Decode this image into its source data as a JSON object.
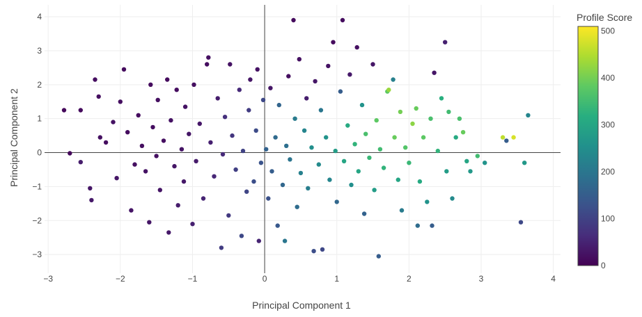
{
  "chart_data": {
    "type": "scatter",
    "title": "",
    "xlabel": "Principal Component 1",
    "ylabel": "Principal Component 2",
    "xlim": [
      -3.05,
      4.1
    ],
    "ylim": [
      -3.55,
      4.35
    ],
    "xticks": [
      -3,
      -2,
      -1,
      0,
      1,
      2,
      3,
      4
    ],
    "yticks": [
      -3,
      -2,
      -1,
      0,
      1,
      2,
      3,
      4
    ],
    "grid": true,
    "zero_lines": true,
    "colorbar": {
      "title": "Profile Score",
      "min": 0,
      "max": 510,
      "ticks": [
        0,
        100,
        200,
        300,
        400,
        500
      ],
      "colorscale": "viridis"
    },
    "points_note": "approximate representative sample of the ~900 plotted points",
    "points": [
      {
        "x": -2.78,
        "y": 1.25,
        "score": 12
      },
      {
        "x": -2.7,
        "y": -0.02,
        "score": 10
      },
      {
        "x": -2.55,
        "y": 1.25,
        "score": 15
      },
      {
        "x": -2.55,
        "y": -0.28,
        "score": 40
      },
      {
        "x": -2.42,
        "y": -1.05,
        "score": 30
      },
      {
        "x": -2.4,
        "y": -1.4,
        "score": 35
      },
      {
        "x": -2.35,
        "y": 2.15,
        "score": 18
      },
      {
        "x": -2.3,
        "y": 1.65,
        "score": 20
      },
      {
        "x": -2.28,
        "y": 0.45,
        "score": 22
      },
      {
        "x": -2.2,
        "y": 0.3,
        "score": 18
      },
      {
        "x": -2.1,
        "y": 0.9,
        "score": 25
      },
      {
        "x": -2.05,
        "y": -0.75,
        "score": 30
      },
      {
        "x": -2.0,
        "y": 1.5,
        "score": 20
      },
      {
        "x": -1.95,
        "y": 2.45,
        "score": 14
      },
      {
        "x": -1.9,
        "y": 0.6,
        "score": 16
      },
      {
        "x": -1.85,
        "y": -1.7,
        "score": 28
      },
      {
        "x": -1.8,
        "y": -0.35,
        "score": 22
      },
      {
        "x": -1.75,
        "y": 1.1,
        "score": 18
      },
      {
        "x": -1.7,
        "y": 0.2,
        "score": 20
      },
      {
        "x": -1.65,
        "y": -0.55,
        "score": 24
      },
      {
        "x": -1.6,
        "y": -2.05,
        "score": 30
      },
      {
        "x": -1.58,
        "y": 2.0,
        "score": 16
      },
      {
        "x": -1.55,
        "y": 0.75,
        "score": 19
      },
      {
        "x": -1.5,
        "y": -0.1,
        "score": 22
      },
      {
        "x": -1.48,
        "y": 1.55,
        "score": 20
      },
      {
        "x": -1.45,
        "y": -1.1,
        "score": 27
      },
      {
        "x": -1.4,
        "y": 0.35,
        "score": 21
      },
      {
        "x": -1.35,
        "y": 2.15,
        "score": 15
      },
      {
        "x": -1.33,
        "y": -2.35,
        "score": 35
      },
      {
        "x": -1.3,
        "y": 0.95,
        "score": 24
      },
      {
        "x": -1.25,
        "y": -0.4,
        "score": 30
      },
      {
        "x": -1.22,
        "y": 1.85,
        "score": 18
      },
      {
        "x": -1.2,
        "y": -1.55,
        "score": 40
      },
      {
        "x": -1.15,
        "y": 0.1,
        "score": 28
      },
      {
        "x": -1.12,
        "y": -0.85,
        "score": 35
      },
      {
        "x": -1.1,
        "y": 1.35,
        "score": 25
      },
      {
        "x": -1.05,
        "y": 0.55,
        "score": 30
      },
      {
        "x": -1.0,
        "y": -2.1,
        "score": 45
      },
      {
        "x": -0.98,
        "y": 2.0,
        "score": 20
      },
      {
        "x": -0.95,
        "y": -0.25,
        "score": 38
      },
      {
        "x": -0.9,
        "y": 0.85,
        "score": 32
      },
      {
        "x": -0.85,
        "y": -1.35,
        "score": 50
      },
      {
        "x": -0.8,
        "y": 2.6,
        "score": 18
      },
      {
        "x": -0.78,
        "y": 2.8,
        "score": 22
      },
      {
        "x": -0.75,
        "y": 0.3,
        "score": 45
      },
      {
        "x": -0.7,
        "y": -0.7,
        "score": 55
      },
      {
        "x": -0.65,
        "y": 1.6,
        "score": 40
      },
      {
        "x": -0.6,
        "y": -2.8,
        "score": 90
      },
      {
        "x": -0.58,
        "y": -0.05,
        "score": 60
      },
      {
        "x": -0.55,
        "y": 1.05,
        "score": 70
      },
      {
        "x": -0.5,
        "y": -1.85,
        "score": 85
      },
      {
        "x": -0.48,
        "y": 2.6,
        "score": 25
      },
      {
        "x": -0.45,
        "y": 0.5,
        "score": 80
      },
      {
        "x": -0.4,
        "y": -0.5,
        "score": 95
      },
      {
        "x": -0.35,
        "y": 1.85,
        "score": 60
      },
      {
        "x": -0.32,
        "y": -2.45,
        "score": 110
      },
      {
        "x": -0.3,
        "y": 0.05,
        "score": 100
      },
      {
        "x": -0.25,
        "y": -1.15,
        "score": 105
      },
      {
        "x": -0.22,
        "y": 1.25,
        "score": 90
      },
      {
        "x": -0.2,
        "y": 2.15,
        "score": 30
      },
      {
        "x": -0.15,
        "y": -0.85,
        "score": 120
      },
      {
        "x": -0.12,
        "y": 0.65,
        "score": 115
      },
      {
        "x": -0.1,
        "y": 2.45,
        "score": 25
      },
      {
        "x": -0.08,
        "y": -2.6,
        "score": 50
      },
      {
        "x": -0.05,
        "y": -0.3,
        "score": 130
      },
      {
        "x": -0.02,
        "y": 1.55,
        "score": 110
      },
      {
        "x": 0.02,
        "y": 0.1,
        "score": 160
      },
      {
        "x": 0.05,
        "y": -1.35,
        "score": 125
      },
      {
        "x": 0.08,
        "y": 1.9,
        "score": 30
      },
      {
        "x": 0.1,
        "y": -0.55,
        "score": 150
      },
      {
        "x": 0.15,
        "y": 0.45,
        "score": 175
      },
      {
        "x": 0.18,
        "y": -2.15,
        "score": 140
      },
      {
        "x": 0.2,
        "y": 1.4,
        "score": 165
      },
      {
        "x": 0.25,
        "y": -0.95,
        "score": 170
      },
      {
        "x": 0.28,
        "y": -2.6,
        "score": 200
      },
      {
        "x": 0.3,
        "y": 0.2,
        "score": 185
      },
      {
        "x": 0.33,
        "y": 2.25,
        "score": 20
      },
      {
        "x": 0.35,
        "y": -0.2,
        "score": 195
      },
      {
        "x": 0.4,
        "y": 3.9,
        "score": 15
      },
      {
        "x": 0.42,
        "y": 1.0,
        "score": 210
      },
      {
        "x": 0.45,
        "y": -1.6,
        "score": 180
      },
      {
        "x": 0.48,
        "y": 2.75,
        "score": 22
      },
      {
        "x": 0.5,
        "y": -0.6,
        "score": 220
      },
      {
        "x": 0.55,
        "y": 0.65,
        "score": 230
      },
      {
        "x": 0.58,
        "y": 1.6,
        "score": 40
      },
      {
        "x": 0.6,
        "y": -1.05,
        "score": 215
      },
      {
        "x": 0.65,
        "y": 0.15,
        "score": 250
      },
      {
        "x": 0.68,
        "y": -2.9,
        "score": 120
      },
      {
        "x": 0.7,
        "y": 2.1,
        "score": 30
      },
      {
        "x": 0.75,
        "y": -0.35,
        "score": 240
      },
      {
        "x": 0.78,
        "y": 1.25,
        "score": 200
      },
      {
        "x": 0.8,
        "y": -2.85,
        "score": 110
      },
      {
        "x": 0.85,
        "y": 0.45,
        "score": 260
      },
      {
        "x": 0.88,
        "y": 2.55,
        "score": 25
      },
      {
        "x": 0.9,
        "y": -0.8,
        "score": 230
      },
      {
        "x": 0.95,
        "y": 3.25,
        "score": 15
      },
      {
        "x": 0.98,
        "y": 0.05,
        "score": 280
      },
      {
        "x": 1.0,
        "y": -1.45,
        "score": 170
      },
      {
        "x": 1.05,
        "y": 1.8,
        "score": 150
      },
      {
        "x": 1.08,
        "y": 3.9,
        "score": 18
      },
      {
        "x": 1.1,
        "y": -0.25,
        "score": 300
      },
      {
        "x": 1.15,
        "y": 0.8,
        "score": 310
      },
      {
        "x": 1.18,
        "y": 2.3,
        "score": 35
      },
      {
        "x": 1.2,
        "y": -0.95,
        "score": 250
      },
      {
        "x": 1.25,
        "y": 0.25,
        "score": 330
      },
      {
        "x": 1.28,
        "y": 3.1,
        "score": 22
      },
      {
        "x": 1.3,
        "y": -0.55,
        "score": 300
      },
      {
        "x": 1.35,
        "y": 1.4,
        "score": 260
      },
      {
        "x": 1.38,
        "y": -1.8,
        "score": 160
      },
      {
        "x": 1.4,
        "y": 0.55,
        "score": 360
      },
      {
        "x": 1.45,
        "y": -0.15,
        "score": 340
      },
      {
        "x": 1.5,
        "y": 2.6,
        "score": 30
      },
      {
        "x": 1.52,
        "y": -1.1,
        "score": 280
      },
      {
        "x": 1.55,
        "y": 0.95,
        "score": 380
      },
      {
        "x": 1.58,
        "y": -3.05,
        "score": 150
      },
      {
        "x": 1.6,
        "y": 0.1,
        "score": 350
      },
      {
        "x": 1.65,
        "y": -0.45,
        "score": 330
      },
      {
        "x": 1.7,
        "y": 1.8,
        "score": 380
      },
      {
        "x": 1.72,
        "y": 1.85,
        "score": 430
      },
      {
        "x": 1.78,
        "y": 2.15,
        "score": 220
      },
      {
        "x": 1.8,
        "y": 0.45,
        "score": 390
      },
      {
        "x": 1.85,
        "y": -0.8,
        "score": 300
      },
      {
        "x": 1.88,
        "y": 1.2,
        "score": 400
      },
      {
        "x": 1.9,
        "y": -1.7,
        "score": 210
      },
      {
        "x": 1.95,
        "y": 0.15,
        "score": 370
      },
      {
        "x": 2.0,
        "y": -0.3,
        "score": 340
      },
      {
        "x": 2.05,
        "y": 0.85,
        "score": 420
      },
      {
        "x": 2.1,
        "y": 1.3,
        "score": 390
      },
      {
        "x": 2.12,
        "y": -2.15,
        "score": 180
      },
      {
        "x": 2.15,
        "y": -0.85,
        "score": 310
      },
      {
        "x": 2.2,
        "y": 0.45,
        "score": 380
      },
      {
        "x": 2.25,
        "y": -1.45,
        "score": 260
      },
      {
        "x": 2.3,
        "y": 1.0,
        "score": 360
      },
      {
        "x": 2.32,
        "y": -2.15,
        "score": 150
      },
      {
        "x": 2.35,
        "y": 2.35,
        "score": 30
      },
      {
        "x": 2.4,
        "y": 0.05,
        "score": 330
      },
      {
        "x": 2.45,
        "y": 1.6,
        "score": 320
      },
      {
        "x": 2.5,
        "y": 3.25,
        "score": 45
      },
      {
        "x": 2.52,
        "y": -0.55,
        "score": 280
      },
      {
        "x": 2.55,
        "y": 1.2,
        "score": 350
      },
      {
        "x": 2.6,
        "y": -1.35,
        "score": 240
      },
      {
        "x": 2.65,
        "y": 0.45,
        "score": 310
      },
      {
        "x": 2.7,
        "y": 1.0,
        "score": 360
      },
      {
        "x": 2.75,
        "y": 0.6,
        "score": 390
      },
      {
        "x": 2.8,
        "y": -0.25,
        "score": 300
      },
      {
        "x": 2.85,
        "y": -0.55,
        "score": 270
      },
      {
        "x": 2.95,
        "y": -0.1,
        "score": 350
      },
      {
        "x": 3.05,
        "y": -0.3,
        "score": 260
      },
      {
        "x": 3.3,
        "y": 0.45,
        "score": 460
      },
      {
        "x": 3.45,
        "y": 0.45,
        "score": 480
      },
      {
        "x": 3.35,
        "y": 0.35,
        "score": 150
      },
      {
        "x": 3.55,
        "y": -2.05,
        "score": 110
      },
      {
        "x": 3.6,
        "y": -0.3,
        "score": 270
      },
      {
        "x": 3.65,
        "y": 1.1,
        "score": 230
      }
    ]
  }
}
